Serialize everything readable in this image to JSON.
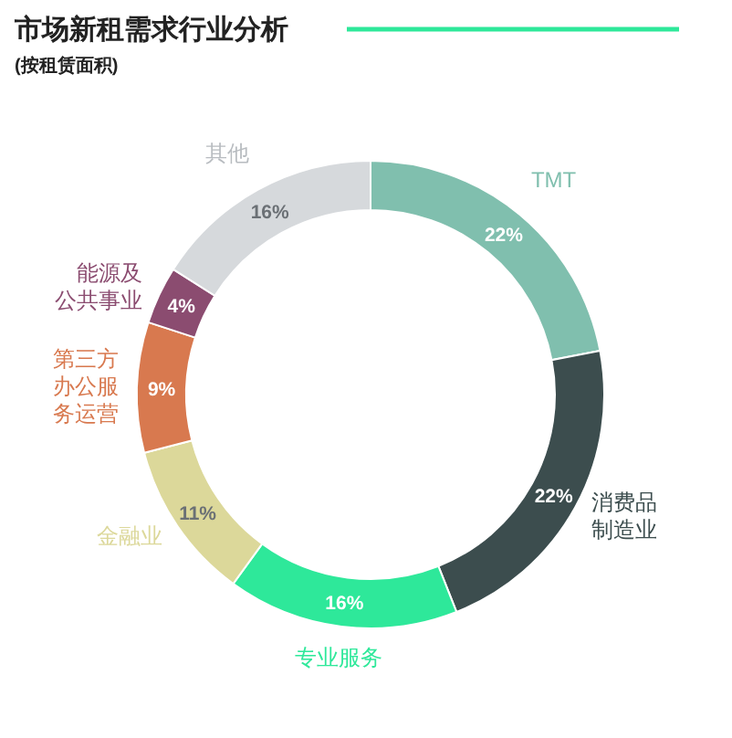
{
  "chart_data": {
    "type": "donut",
    "title": "市场新租需求行业分析",
    "subtitle": "(按租赁面积)",
    "categories": [
      "TMT",
      "消费品制造业",
      "专业服务",
      "金融业",
      "第三方办公服务运营",
      "能源及公共事业",
      "其他"
    ],
    "values": [
      22,
      22,
      16,
      11,
      9,
      4,
      16
    ],
    "value_labels": [
      "22%",
      "22%",
      "16%",
      "11%",
      "9%",
      "4%",
      "16%"
    ],
    "colors": [
      "#80bfae",
      "#3c4d4e",
      "#2ee89a",
      "#dcd89a",
      "#d8794f",
      "#8b4c70",
      "#d6d9dc"
    ]
  }
}
